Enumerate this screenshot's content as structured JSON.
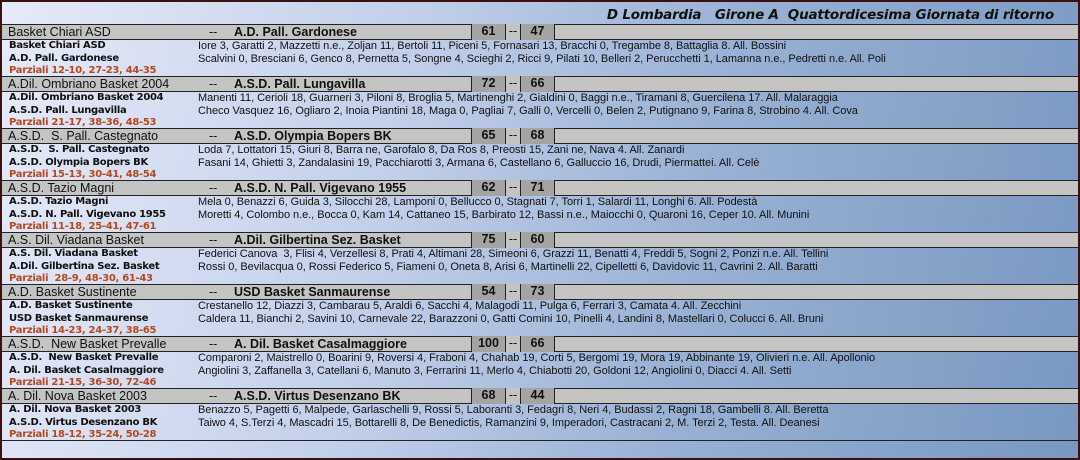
{
  "title": "D Lombardia   Girone A  Quattordicesima Giornata di ritorno",
  "separator": "--",
  "colors": {
    "parziali": "#b5481e",
    "header_bg": "#c4c4c4",
    "score_bg": "#a4a4a4"
  },
  "games": [
    {
      "home": "Basket Chiari ASD",
      "away": "A.D. Pall. Gardonese",
      "score_home": "61",
      "score_away": "47",
      "home_label": "Basket Chiari ASD",
      "away_label": "A.D. Pall. Gardonese",
      "home_players": "Iore 3, Garatti 2, Mazzetti n.e., Zoljan 11, Bertoli 11, Piceni 5, Fornasari 13, Bracchi 0, Tregambe 8, Battaglia 8. All. Bossini",
      "away_players": "Scalvini 0, Bresciani 6, Genco 8, Pernetta 5, Songne 4, Scieghi 2, Ricci 9, Pilati 10, Belleri 2, Perucchetti 1, Lamanna n.e., Pedretti n.e. All. Poli",
      "parziali": "Parziali 12-10, 27-23, 44-35"
    },
    {
      "home": "A.Dil. Ombriano Basket 2004",
      "away": "A.S.D. Pall. Lungavilla",
      "score_home": "72",
      "score_away": "66",
      "home_label": "A.Dil. Ombriano Basket 2004",
      "away_label": "A.S.D. Pall. Lungavilla",
      "home_players": "Manenti 11, Cerioli 18, Guarneri 3, Piloni 8, Broglia 5, Martinenghi 2, Gialdini 0, Baggi n.e., Tiramani 8, Guercilena 17. All. Malaraggia",
      "away_players": "Checo Vasquez 16, Ogliaro 2, Inoia Piantini 18, Maga 0, Pagliai 7, Galli 0, Vercelli 0, Belen 2, Putignano 9, Farina 8, Strobino 4. All. Cova",
      "parziali": "Parziali 21-17, 38-36, 48-53"
    },
    {
      "home": "A.S.D.  S. Pall. Castegnato",
      "away": "A.S.D. Olympia Bopers BK",
      "score_home": "65",
      "score_away": "68",
      "home_label": "A.S.D.  S. Pall. Castegnato",
      "away_label": "A.S.D. Olympia Bopers BK",
      "home_players": "Loda 7, Lottatori 15, Giuri 8, Barra ne, Garofalo 8, Da Ros 8, Preosti 15, Zani ne, Nava 4. All. Zanardi",
      "away_players": "Fasani 14, Ghietti 3, Zandalasini 19, Pacchiarotti 3, Armana 6, Castellano 6, Galluccio 16, Drudi, Piermattei. All. Celè",
      "parziali": "Parziali 15-13, 30-41, 48-54"
    },
    {
      "home": "A.S.D. Tazio Magni",
      "away": "A.S.D. N. Pall. Vigevano 1955",
      "score_home": "62",
      "score_away": "71",
      "home_label": "A.S.D. Tazio Magni",
      "away_label": "A.S.D. N. Pall. Vigevano 1955",
      "home_players": "Mela 0, Benazzi 6, Guida 3, Silocchi 28, Lamponi 0, Bellucco 0, Stagnati 7, Torri 1, Salardi 11, Longhi 6. All. Podestà",
      "away_players": "Moretti 4, Colombo n.e., Bocca 0, Kam 14, Cattaneo 15, Barbirato 12, Bassi n.e., Maiocchi 0, Quaroni 16, Ceper 10. All. Munini",
      "parziali": "Parziali 11-18, 25-41, 47-61"
    },
    {
      "home": "A.S. Dil. Viadana Basket",
      "away": "A.Dil. Gilbertina Sez. Basket",
      "score_home": "75",
      "score_away": "60",
      "home_label": "A.S. Dil. Viadana Basket",
      "away_label": "A.Dil. Gilbertina Sez. Basket",
      "home_players": "Federici Canova  3, Flisi 4, Verzellesi 8, Prati 4, Altimani 28, Simeoni 6, Grazzi 11, Benatti 4, Freddi 5, Sogni 2, Ponzi n.e. All. Tellini",
      "away_players": "Rossi 0, Bevilacqua 0, Rossi Federico 5, Fiameni 0, Oneta 8, Arisi 6, Martinelli 22, Cipelletti 6, Davidovic 11, Cavrini 2. All. Baratti",
      "parziali": "Parziali  28-9, 48-30, 61-43"
    },
    {
      "home": "A.D. Basket Sustinente",
      "away": "USD Basket Sanmaurense",
      "score_home": "54",
      "score_away": "73",
      "home_label": "A.D. Basket Sustinente",
      "away_label": "USD Basket Sanmaurense",
      "home_players": "Crestanello 12, Diazzi 3, Cambarau 5, Araldi 6, Sacchi 4, Malagodi 11, Pulga 6, Ferrari 3, Camata 4. All. Zecchini",
      "away_players": "Caldera 11, Bianchi 2, Savini 10, Carnevale 22, Barazzoni 0, Gatti Comini 10, Pinelli 4, Landini 8, Mastellari 0, Colucci 6. All. Bruni",
      "parziali": "Parziali 14-23, 24-37, 38-65"
    },
    {
      "home": "A.S.D.  New Basket Prevalle",
      "away": "A. Dil. Basket Casalmaggiore",
      "score_home": "100",
      "score_away": "66",
      "home_label": "A.S.D.  New Basket Prevalle",
      "away_label": "A. Dil. Basket Casalmaggiore",
      "home_players": "Comparoni 2, Maistrello 0, Boarini 9, Roversi 4, Fraboni 4, Chahab 19, Corti 5, Bergomi 19, Mora 19, Abbinante 19, Olivieri n.e. All. Apollonio",
      "away_players": "Angiolini 3, Zaffanella 3, Catellani 6, Manuto 3, Ferrarini 11, Merlo 4, Chiabotti 20, Goldoni 12, Angiolini 0, Diacci 4. All. Setti",
      "parziali": "Parziali 21-15, 36-30, 72-46"
    },
    {
      "home": "A. Dil. Nova Basket 2003",
      "away": "A.S.D. Virtus Desenzano BK",
      "score_home": "68",
      "score_away": "44",
      "home_label": "A. Dil. Nova Basket 2003",
      "away_label": "A.S.D. Virtus Desenzano BK",
      "home_players": "Benazzo 5, Pagetti 6, Malpede, Garlaschelli 9, Rossi 5, Laboranti 3, Fedagri 8, Neri 4, Budassi 2, Ragni 18, Gambelli 8. All. Beretta",
      "away_players": "Taiwo 4, S.Terzi 4, Mascadri 15, Bottarelli 8, De Benedictis, Ramanzini 9, Imperadori, Castracani 2, M. Terzi 2, Testa. All. Deanesi",
      "parziali": "Parziali 18-12, 35-24, 50-28"
    }
  ]
}
